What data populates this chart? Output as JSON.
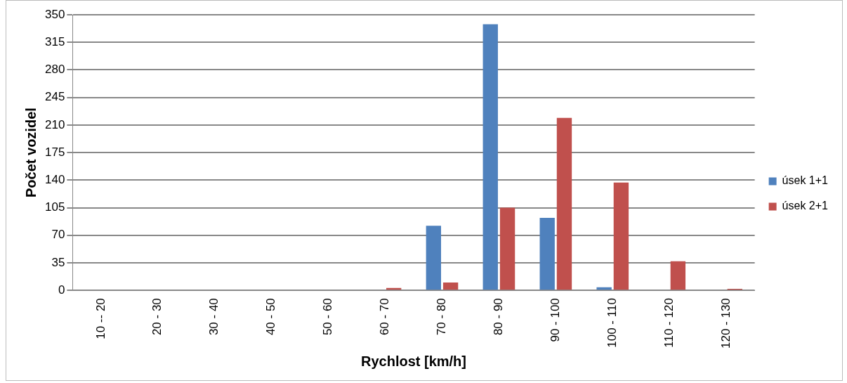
{
  "chart_data": {
    "type": "bar",
    "xlabel": "Rychlost [km/h]",
    "ylabel": "Počet vozidel",
    "categories": [
      "10 -- 20",
      "20 - 30",
      "30 - 40",
      "40 - 50",
      "50 - 60",
      "60 - 70",
      "70 - 80",
      "80 - 90",
      "90 - 100",
      "100 - 110",
      "110 - 120",
      "120 - 130"
    ],
    "series": [
      {
        "name": "úsek 1+1",
        "color": "#4f81bd",
        "values": [
          0,
          0,
          0,
          0,
          0,
          0,
          82,
          338,
          92,
          4,
          0,
          0
        ]
      },
      {
        "name": "úsek 2+1",
        "color": "#c0504d",
        "values": [
          0,
          0,
          0,
          0,
          0,
          3,
          10,
          105,
          219,
          137,
          37,
          2
        ]
      }
    ],
    "ylim": [
      0,
      350
    ],
    "yticks": [
      0,
      35,
      70,
      105,
      140,
      175,
      210,
      245,
      280,
      315,
      350
    ],
    "grid": "y",
    "legend": "right"
  }
}
